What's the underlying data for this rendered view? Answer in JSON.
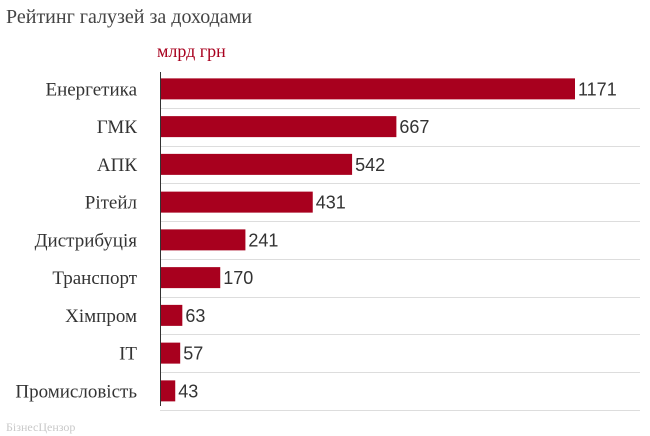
{
  "chart_data": {
    "type": "bar",
    "orientation": "horizontal",
    "title": "Рейтинг галузей за доходами",
    "unit_label": "млрд грн",
    "categories": [
      "Енергетика",
      "ГМК",
      "АПК",
      "Рітейл",
      "Дистрибуція",
      "Транспорт",
      "Хімпром",
      "IT",
      "Промисловість"
    ],
    "values": [
      1171,
      667,
      542,
      431,
      241,
      170,
      63,
      57,
      43
    ],
    "xlim": [
      0,
      1300
    ],
    "grid": true,
    "source": "БізнесЦензор",
    "colors": {
      "bar": "#a8001e",
      "unit": "#a8001e",
      "grid": "#dddddd",
      "axis": "#333333"
    }
  }
}
